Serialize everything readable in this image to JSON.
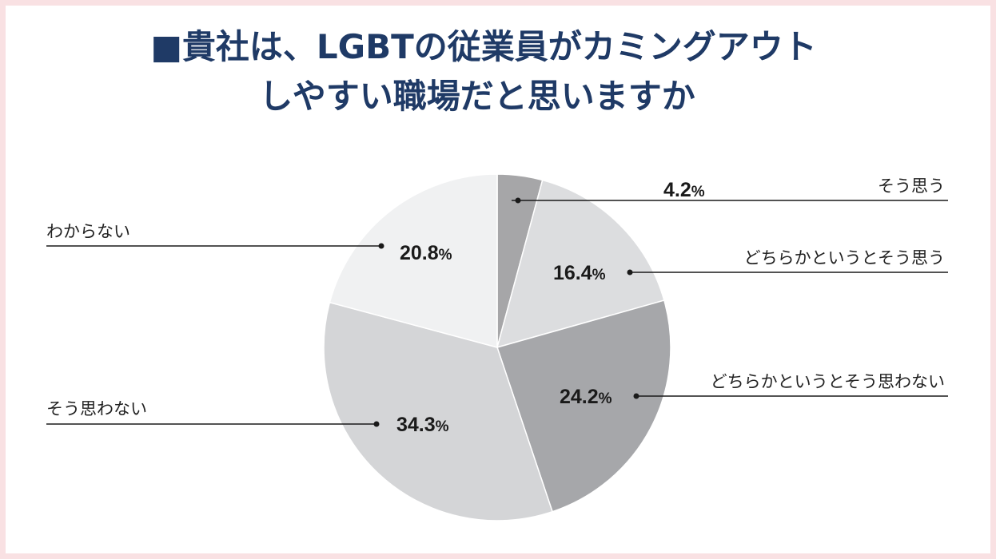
{
  "title": {
    "line1": "■貴社は、LGBTの従業員がカミングアウト",
    "line2": "しやすい職場だと思いますか"
  },
  "chart_data": {
    "type": "pie",
    "title": "■貴社は、LGBTの従業員がカミングアウトしやすい職場だと思いますか",
    "slices": [
      {
        "label": "そう思う",
        "value": 4.2,
        "display": "4.2",
        "color": "#a6a6a8"
      },
      {
        "label": "どちらかというとそう思う",
        "value": 16.4,
        "display": "16.4",
        "color": "#dcdddf"
      },
      {
        "label": "どちらかというとそう思わない",
        "value": 24.2,
        "display": "24.2",
        "color": "#a6a7aa"
      },
      {
        "label": "そう思わない",
        "value": 34.3,
        "display": "34.3",
        "color": "#d4d5d7"
      },
      {
        "label": "わからない",
        "value": 20.8,
        "display": "20.8",
        "color": "#f0f1f2"
      }
    ],
    "unit": "%",
    "start_angle": "12 o'clock",
    "direction": "clockwise"
  }
}
